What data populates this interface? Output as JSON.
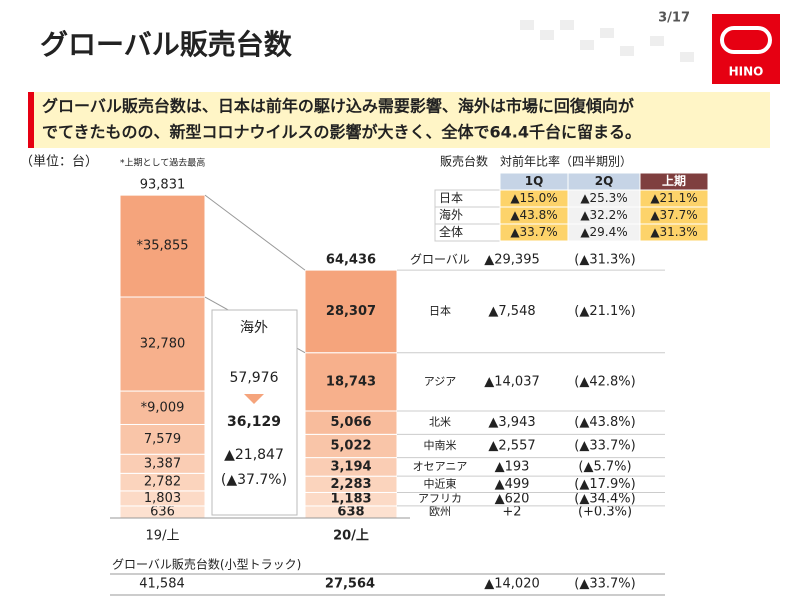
{
  "page_number": "3/17",
  "logo": "HINO",
  "chart_data": {
    "type": "bar",
    "title": "グローバル販売台数",
    "banner": [
      "グローバル販売台数は、日本は前年の駆け込み需要影響、海外は市場に回復傾向が",
      "でてきたものの、新型コロナウイルスの影響が大きく、全体で64.4千台に留まる。"
    ],
    "unit": "（単位：台）",
    "note": "*上期として過去最高",
    "categories": [
      "19/上",
      "20/上"
    ],
    "total_labels": [
      "93,831",
      "64,436"
    ],
    "series": [
      {
        "name": "日本",
        "color": "#f5a47c",
        "values": [
          35855,
          28307
        ],
        "value_labels": [
          "*35,855",
          "28,307"
        ],
        "change": "▲7,548",
        "pct": "(▲21.1%)"
      },
      {
        "name": "アジア",
        "color": "#f7b08c",
        "values": [
          32780,
          18743
        ],
        "value_labels": [
          "32,780",
          "18,743"
        ],
        "change": "▲14,037",
        "pct": "(▲42.8%)"
      },
      {
        "name": "北米",
        "color": "#f8bc9c",
        "values": [
          9009,
          5066
        ],
        "value_labels": [
          "*9,009",
          "5,066"
        ],
        "change": "▲3,943",
        "pct": "(▲43.8%)"
      },
      {
        "name": "中南米",
        "color": "#f9c5a8",
        "values": [
          7579,
          5022
        ],
        "value_labels": [
          "7,579",
          "5,022"
        ],
        "change": "▲2,557",
        "pct": "(▲33.7%)"
      },
      {
        "name": "オセアニア",
        "color": "#facdb4",
        "values": [
          3387,
          3194
        ],
        "value_labels": [
          "3,387",
          "3,194"
        ],
        "change": "▲193",
        "pct": "(▲5.7%)"
      },
      {
        "name": "中近東",
        "color": "#fbd4bd",
        "values": [
          2782,
          2283
        ],
        "value_labels": [
          "2,782",
          "2,283"
        ],
        "change": "▲499",
        "pct": "(▲17.9%)"
      },
      {
        "name": "アフリカ",
        "color": "#fcdac6",
        "values": [
          1803,
          1183
        ],
        "value_labels": [
          "1,803",
          "1,183"
        ],
        "change": "▲620",
        "pct": "(▲34.4%)"
      },
      {
        "name": "欧州",
        "color": "#fde1d0",
        "values": [
          636,
          638
        ],
        "value_labels": [
          "636",
          "638"
        ],
        "change": "+2",
        "pct": "(+0.3%)"
      }
    ],
    "global": {
      "name": "グローバル",
      "change": "▲29,395",
      "pct": "(▲31.3%)"
    },
    "overseas": {
      "title": "海外",
      "before": "57,976",
      "after": "36,129",
      "change": "▲21,847",
      "pct": "(▲37.7%)"
    },
    "small_truck": {
      "title": "グローバル販売台数(小型トラック)",
      "values": [
        "41,584",
        "27,564",
        "▲14,020",
        "(▲33.7%)"
      ]
    }
  },
  "ratio_table": {
    "title": "販売台数　対前年比率（四半期別）",
    "header": [
      "1Q",
      "2Q",
      "上期"
    ],
    "rows": [
      {
        "name": "日本",
        "cells": [
          "▲15.0%",
          "▲25.3%",
          "▲21.1%"
        ]
      },
      {
        "name": "海外",
        "cells": [
          "▲43.8%",
          "▲32.2%",
          "▲37.7%"
        ]
      },
      {
        "name": "全体",
        "cells": [
          "▲33.7%",
          "▲29.4%",
          "▲31.3%"
        ]
      }
    ]
  }
}
